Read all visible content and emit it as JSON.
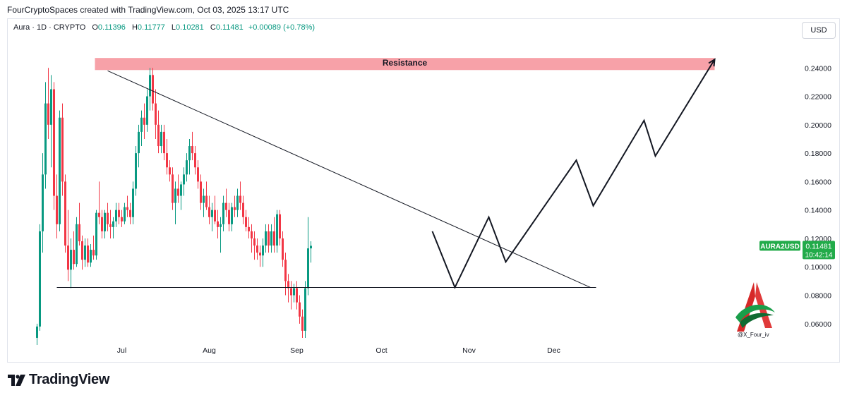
{
  "header": {
    "caption": "FourCryptoSpaces created with TradingView.com, Oct 03, 2025 13:17 UTC",
    "symbol": "Aura · 1D · CRYPTO",
    "open_label": "O",
    "open": "0.11396",
    "high_label": "H",
    "high": "0.11777",
    "low_label": "L",
    "low": "0.10281",
    "close_label": "C",
    "close": "0.11481",
    "change": "+0.00089 (+0.78%)",
    "currency": "USD"
  },
  "price_tag": {
    "ticker": "AURA2USD",
    "price": "0.11481",
    "countdown": "10:42:14"
  },
  "brand": {
    "name": "TradingView",
    "handle": "@X_Four_iv"
  },
  "colors": {
    "up": "#089981",
    "down": "#f23645",
    "resistance": "#f7a1a8",
    "tag": "#22ab4a"
  },
  "chart_data": {
    "type": "candlestick",
    "y_ticks": [
      "0.24000",
      "0.22000",
      "0.20000",
      "0.18000",
      "0.16000",
      "0.14000",
      "0.12000",
      "0.10000",
      "0.08000",
      "0.06000"
    ],
    "x_ticks": [
      "Jul",
      "Aug",
      "Sep",
      "Oct",
      "Nov",
      "Dec"
    ],
    "ylim": [
      0.047,
      0.258
    ],
    "annotations": {
      "resistance_label": "Resistance",
      "resistance_zone": [
        0.2385,
        0.247
      ],
      "support_level": 0.0855,
      "trendline": [
        [
          25,
          0.238
        ],
        [
          181,
          0.0855
        ]
      ],
      "projection_path": [
        [
          140,
          0.125
        ],
        [
          148,
          0.0855
        ],
        [
          160,
          0.135
        ],
        [
          166,
          0.1035
        ],
        [
          191,
          0.175
        ],
        [
          197,
          0.143
        ],
        [
          215,
          0.203
        ],
        [
          219,
          0.178
        ],
        [
          240,
          0.246
        ]
      ]
    },
    "candles_start": "2025-06-07",
    "candles": [
      [
        0.05,
        0.06,
        0.045,
        0.058
      ],
      [
        0.058,
        0.13,
        0.055,
        0.125
      ],
      [
        0.125,
        0.18,
        0.11,
        0.165
      ],
      [
        0.165,
        0.23,
        0.155,
        0.215
      ],
      [
        0.215,
        0.24,
        0.19,
        0.2
      ],
      [
        0.2,
        0.235,
        0.17,
        0.225
      ],
      [
        0.225,
        0.23,
        0.14,
        0.15
      ],
      [
        0.15,
        0.165,
        0.12,
        0.13
      ],
      [
        0.13,
        0.21,
        0.125,
        0.205
      ],
      [
        0.205,
        0.215,
        0.15,
        0.16
      ],
      [
        0.16,
        0.165,
        0.11,
        0.115
      ],
      [
        0.115,
        0.14,
        0.09,
        0.098
      ],
      [
        0.098,
        0.12,
        0.085,
        0.112
      ],
      [
        0.112,
        0.125,
        0.098,
        0.102
      ],
      [
        0.102,
        0.135,
        0.1,
        0.13
      ],
      [
        0.13,
        0.145,
        0.115,
        0.118
      ],
      [
        0.118,
        0.122,
        0.098,
        0.105
      ],
      [
        0.105,
        0.12,
        0.1,
        0.115
      ],
      [
        0.115,
        0.12,
        0.1,
        0.103
      ],
      [
        0.103,
        0.116,
        0.1,
        0.112
      ],
      [
        0.112,
        0.122,
        0.105,
        0.108
      ],
      [
        0.108,
        0.14,
        0.105,
        0.138
      ],
      [
        0.138,
        0.16,
        0.13,
        0.135
      ],
      [
        0.135,
        0.14,
        0.12,
        0.125
      ],
      [
        0.125,
        0.14,
        0.12,
        0.138
      ],
      [
        0.138,
        0.145,
        0.125,
        0.13
      ],
      [
        0.13,
        0.14,
        0.12,
        0.128
      ],
      [
        0.128,
        0.135,
        0.12,
        0.132
      ],
      [
        0.132,
        0.145,
        0.128,
        0.14
      ],
      [
        0.14,
        0.145,
        0.13,
        0.135
      ],
      [
        0.135,
        0.14,
        0.128,
        0.132
      ],
      [
        0.132,
        0.145,
        0.13,
        0.142
      ],
      [
        0.142,
        0.15,
        0.135,
        0.14
      ],
      [
        0.14,
        0.145,
        0.13,
        0.135
      ],
      [
        0.135,
        0.16,
        0.13,
        0.155
      ],
      [
        0.155,
        0.185,
        0.15,
        0.18
      ],
      [
        0.18,
        0.2,
        0.17,
        0.195
      ],
      [
        0.195,
        0.21,
        0.185,
        0.205
      ],
      [
        0.205,
        0.215,
        0.19,
        0.2
      ],
      [
        0.2,
        0.225,
        0.195,
        0.22
      ],
      [
        0.22,
        0.24,
        0.21,
        0.235
      ],
      [
        0.235,
        0.24,
        0.21,
        0.215
      ],
      [
        0.215,
        0.225,
        0.19,
        0.2
      ],
      [
        0.2,
        0.21,
        0.18,
        0.185
      ],
      [
        0.185,
        0.2,
        0.18,
        0.195
      ],
      [
        0.195,
        0.2,
        0.175,
        0.18
      ],
      [
        0.18,
        0.19,
        0.165,
        0.17
      ],
      [
        0.17,
        0.175,
        0.16,
        0.165
      ],
      [
        0.165,
        0.17,
        0.14,
        0.145
      ],
      [
        0.145,
        0.16,
        0.13,
        0.155
      ],
      [
        0.155,
        0.165,
        0.145,
        0.15
      ],
      [
        0.15,
        0.16,
        0.14,
        0.158
      ],
      [
        0.158,
        0.17,
        0.15,
        0.165
      ],
      [
        0.165,
        0.18,
        0.16,
        0.175
      ],
      [
        0.175,
        0.19,
        0.165,
        0.185
      ],
      [
        0.185,
        0.195,
        0.175,
        0.18
      ],
      [
        0.18,
        0.185,
        0.165,
        0.17
      ],
      [
        0.17,
        0.175,
        0.155,
        0.16
      ],
      [
        0.16,
        0.165,
        0.14,
        0.145
      ],
      [
        0.145,
        0.155,
        0.135,
        0.15
      ],
      [
        0.15,
        0.16,
        0.14,
        0.142
      ],
      [
        0.142,
        0.15,
        0.13,
        0.135
      ],
      [
        0.135,
        0.145,
        0.125,
        0.14
      ],
      [
        0.14,
        0.15,
        0.13,
        0.132
      ],
      [
        0.132,
        0.14,
        0.12,
        0.128
      ],
      [
        0.128,
        0.135,
        0.11,
        0.13
      ],
      [
        0.13,
        0.15,
        0.125,
        0.145
      ],
      [
        0.145,
        0.155,
        0.135,
        0.14
      ],
      [
        0.14,
        0.145,
        0.125,
        0.13
      ],
      [
        0.13,
        0.145,
        0.125,
        0.142
      ],
      [
        0.142,
        0.15,
        0.135,
        0.14
      ],
      [
        0.14,
        0.155,
        0.135,
        0.15
      ],
      [
        0.15,
        0.16,
        0.14,
        0.145
      ],
      [
        0.145,
        0.15,
        0.13,
        0.135
      ],
      [
        0.135,
        0.14,
        0.125,
        0.128
      ],
      [
        0.128,
        0.135,
        0.12,
        0.125
      ],
      [
        0.125,
        0.13,
        0.11,
        0.12
      ],
      [
        0.12,
        0.125,
        0.105,
        0.115
      ],
      [
        0.115,
        0.12,
        0.105,
        0.11
      ],
      [
        0.11,
        0.115,
        0.1,
        0.108
      ],
      [
        0.108,
        0.12,
        0.1,
        0.115
      ],
      [
        0.115,
        0.13,
        0.11,
        0.125
      ],
      [
        0.125,
        0.13,
        0.11,
        0.115
      ],
      [
        0.115,
        0.13,
        0.11,
        0.125
      ],
      [
        0.125,
        0.135,
        0.11,
        0.115
      ],
      [
        0.115,
        0.14,
        0.11,
        0.137
      ],
      [
        0.137,
        0.14,
        0.115,
        0.12
      ],
      [
        0.12,
        0.125,
        0.1,
        0.105
      ],
      [
        0.105,
        0.11,
        0.08,
        0.09
      ],
      [
        0.09,
        0.095,
        0.075,
        0.085
      ],
      [
        0.085,
        0.09,
        0.07,
        0.08
      ],
      [
        0.08,
        0.088,
        0.075,
        0.085
      ],
      [
        0.085,
        0.09,
        0.07,
        0.075
      ],
      [
        0.075,
        0.08,
        0.06,
        0.065
      ],
      [
        0.065,
        0.07,
        0.05,
        0.055
      ],
      [
        0.055,
        0.09,
        0.05,
        0.085
      ],
      [
        0.085,
        0.135,
        0.08,
        0.113
      ],
      [
        0.113,
        0.118,
        0.103,
        0.1148
      ]
    ]
  }
}
